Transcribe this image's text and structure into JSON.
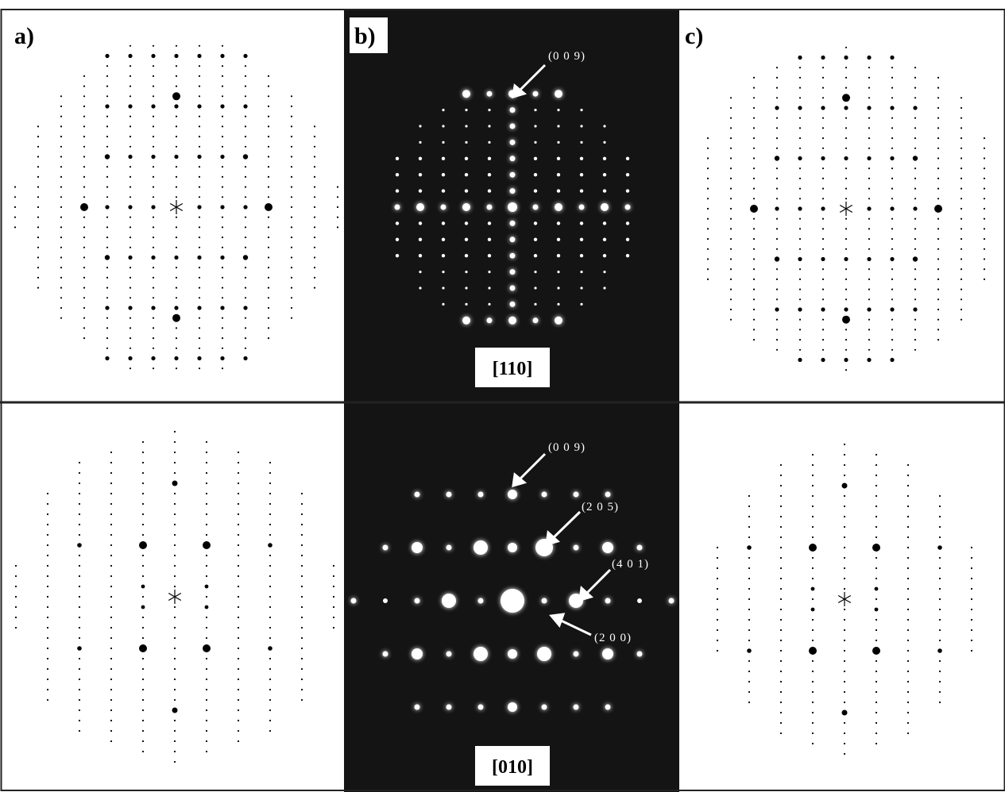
{
  "labels": {
    "a": "a)",
    "b": "b)",
    "c": "c)"
  },
  "top": {
    "zone_axis": "[110]",
    "annotations": [
      "(0 0 9)"
    ]
  },
  "bottom": {
    "zone_axis": "[010]",
    "annotations": [
      "(0 0 9)",
      "(2 0 5)",
      "(4 0 1)",
      "(2 0 0)"
    ]
  }
}
